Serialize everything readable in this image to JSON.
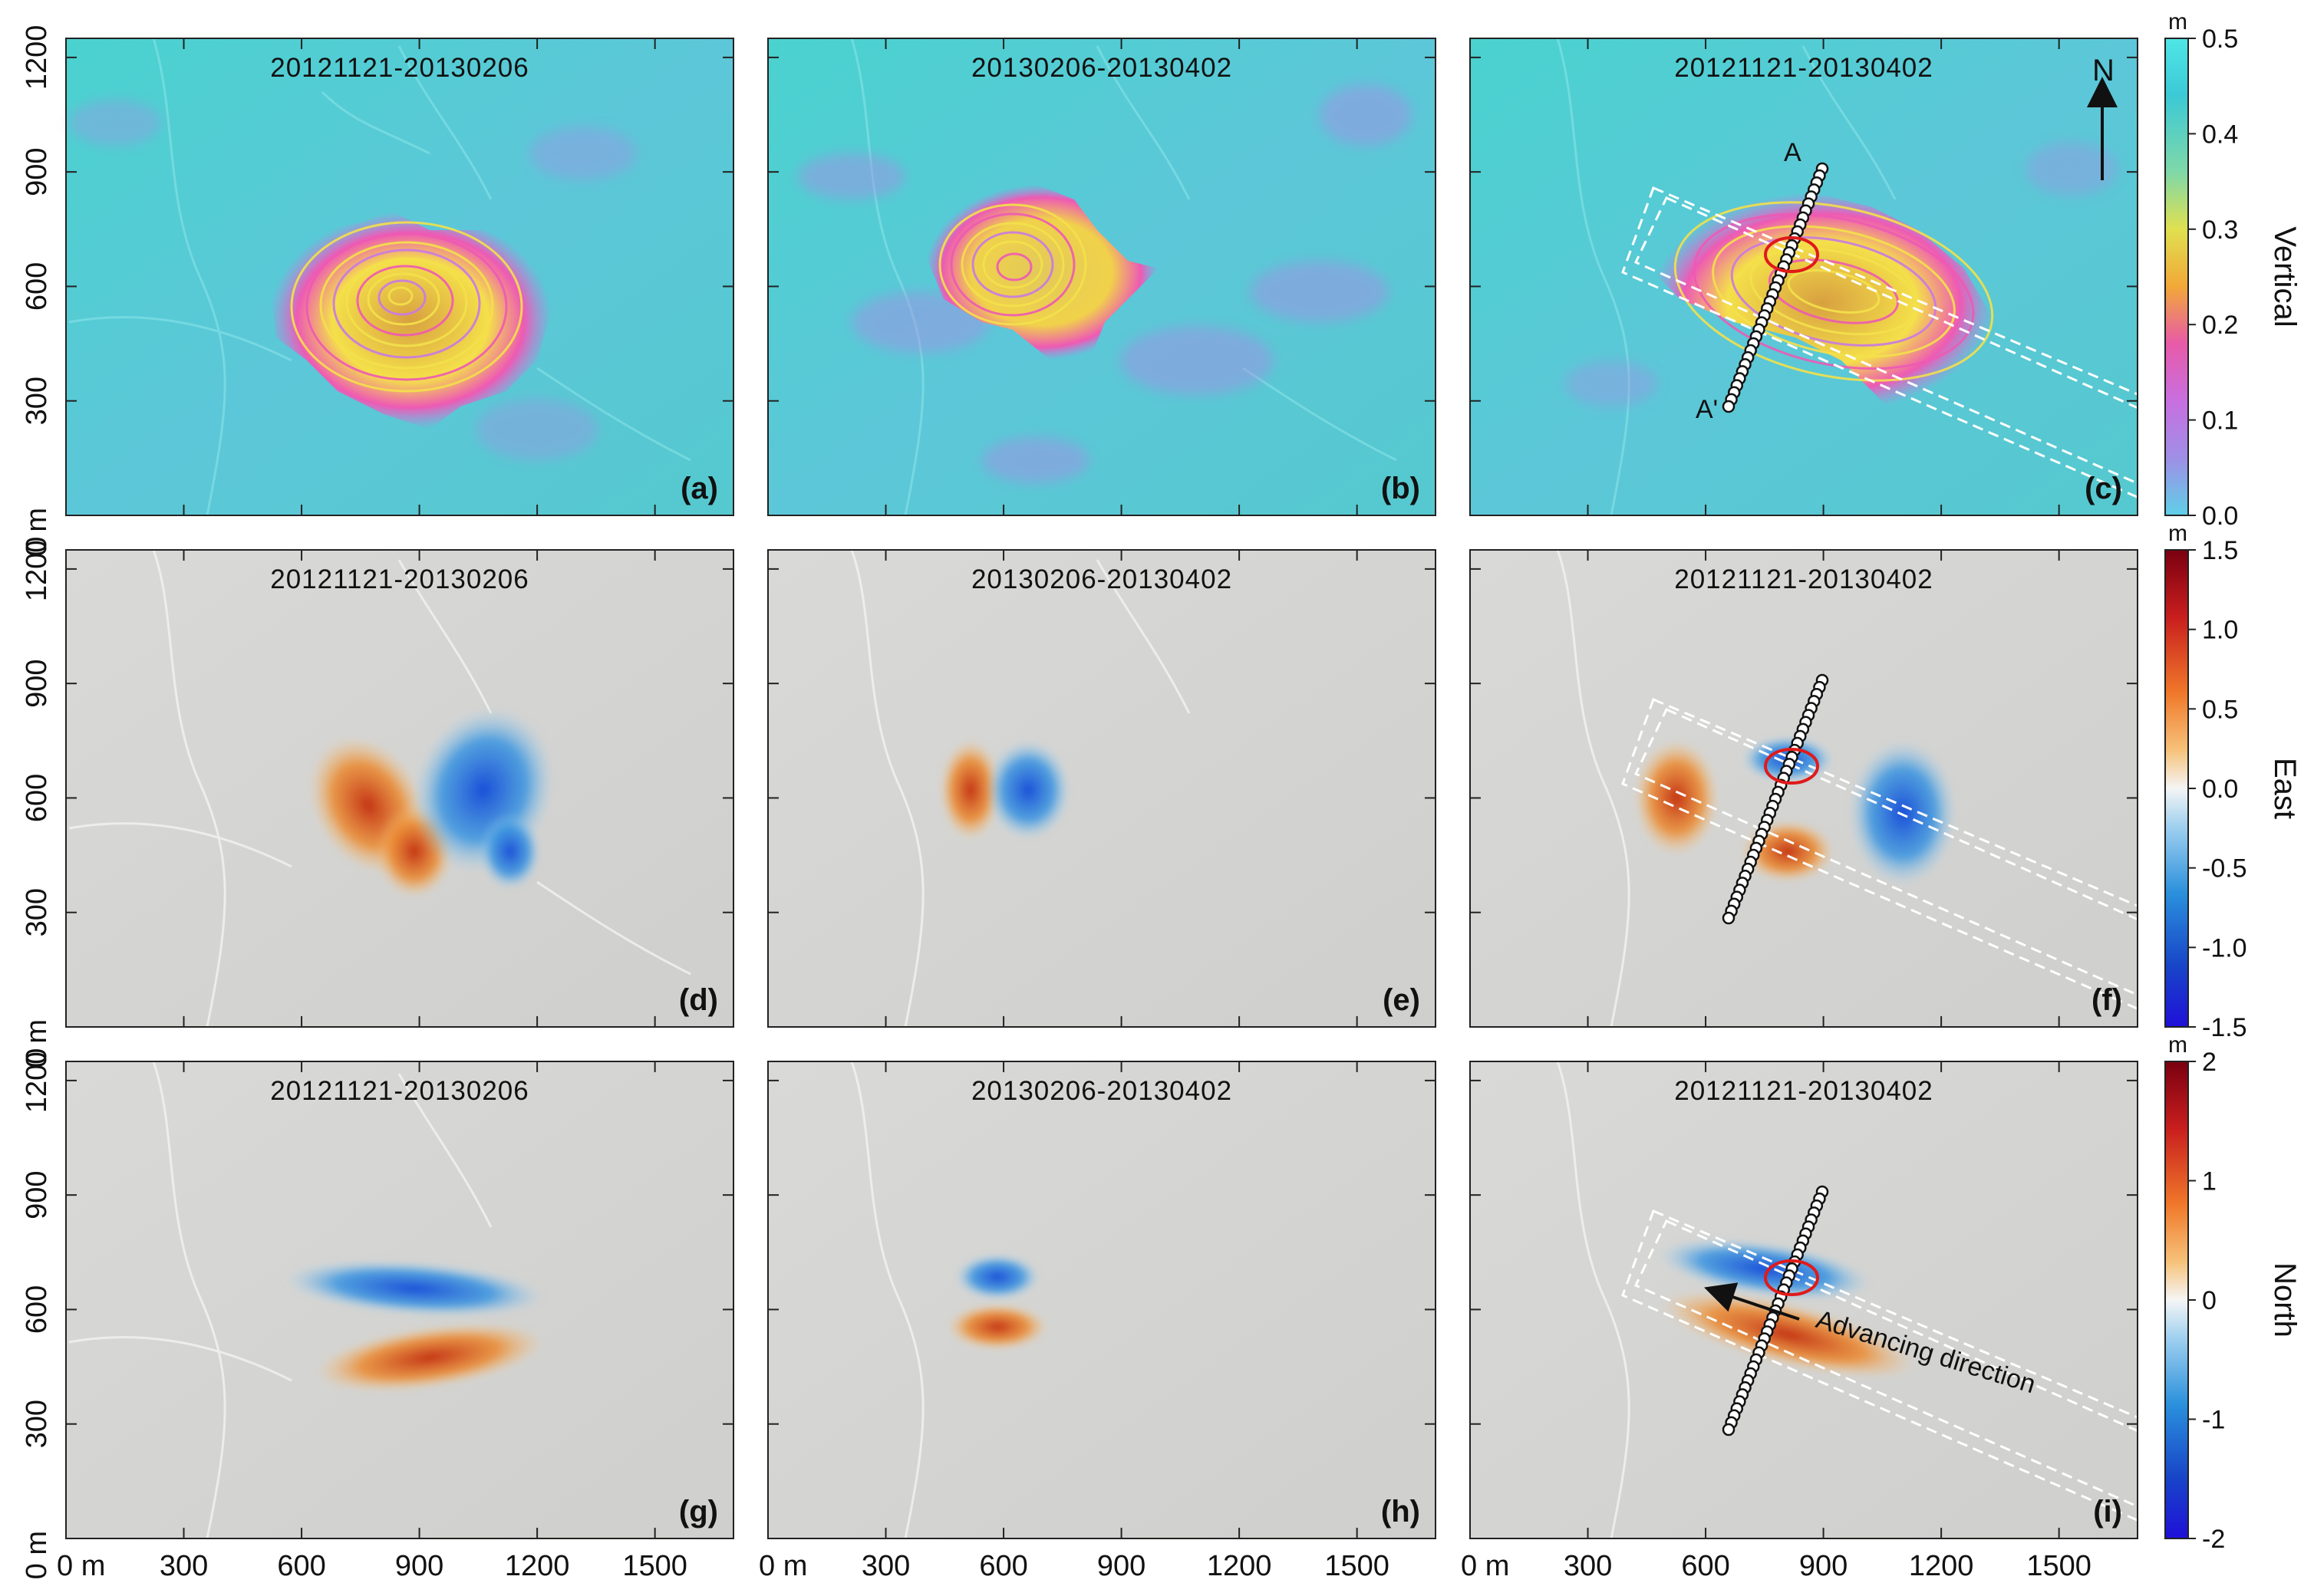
{
  "panels": [
    {
      "letter": "(a)",
      "dates": "20121121-20130206",
      "component": "vertical"
    },
    {
      "letter": "(b)",
      "dates": "20130206-20130402",
      "component": "vertical"
    },
    {
      "letter": "(c)",
      "dates": "20121121-20130402",
      "component": "vertical"
    },
    {
      "letter": "(d)",
      "dates": "20121121-20130206",
      "component": "east"
    },
    {
      "letter": "(e)",
      "dates": "20130206-20130402",
      "component": "east"
    },
    {
      "letter": "(f)",
      "dates": "20121121-20130402",
      "component": "east"
    },
    {
      "letter": "(g)",
      "dates": "20121121-20130206",
      "component": "north"
    },
    {
      "letter": "(h)",
      "dates": "20130206-20130402",
      "component": "north"
    },
    {
      "letter": "(i)",
      "dates": "20121121-20130402",
      "component": "north"
    }
  ],
  "axes": {
    "x_ticks": [
      "0 m",
      "300",
      "600",
      "900",
      "1200",
      "1500"
    ],
    "y_ticks": [
      "0 m",
      "300",
      "600",
      "900",
      "1200"
    ],
    "row_y_ticks": [
      [
        "0 m",
        "300",
        "600",
        "900",
        "1200"
      ],
      [
        "0 m",
        "300",
        "600",
        "900",
        "1200"
      ],
      [
        "0 m",
        "300",
        "600",
        "900",
        "1200"
      ]
    ]
  },
  "colorbars": [
    {
      "title": "Vertical",
      "unit": "m",
      "ticks": [
        "0.5",
        "0.4",
        "0.3",
        "0.2",
        "0.1",
        "0.0"
      ],
      "colors": [
        "#4fe6e6",
        "#3cc9d6",
        "#7fd8a8",
        "#e0e050",
        "#f2a838",
        "#e85aa8",
        "#c86fe0",
        "#9f8fe6",
        "#5fd0e8"
      ]
    },
    {
      "title": "East",
      "unit": "m",
      "ticks": [
        "1.5",
        "1.0",
        "0.5",
        "0.0",
        "-0.5",
        "-1.0",
        "-1.5"
      ],
      "colors": [
        "#7a0010",
        "#c81e1e",
        "#f0782a",
        "#f6c27a",
        "#f5f5f5",
        "#9fd0ef",
        "#2a90dc",
        "#1846c8",
        "#1f10d8"
      ]
    },
    {
      "title": "North",
      "unit": "m",
      "ticks": [
        "2",
        "1",
        "0",
        "-1",
        "-2"
      ],
      "colors": [
        "#7a0010",
        "#c81e1e",
        "#f0782a",
        "#f6c27a",
        "#f5f5f5",
        "#9fd0ef",
        "#2a90dc",
        "#1846c8",
        "#1f10d8"
      ]
    }
  ],
  "annotations": {
    "north_arrow": "N",
    "profile_start": "A",
    "profile_end": "A'",
    "advancing_direction": "Advancing direction"
  }
}
